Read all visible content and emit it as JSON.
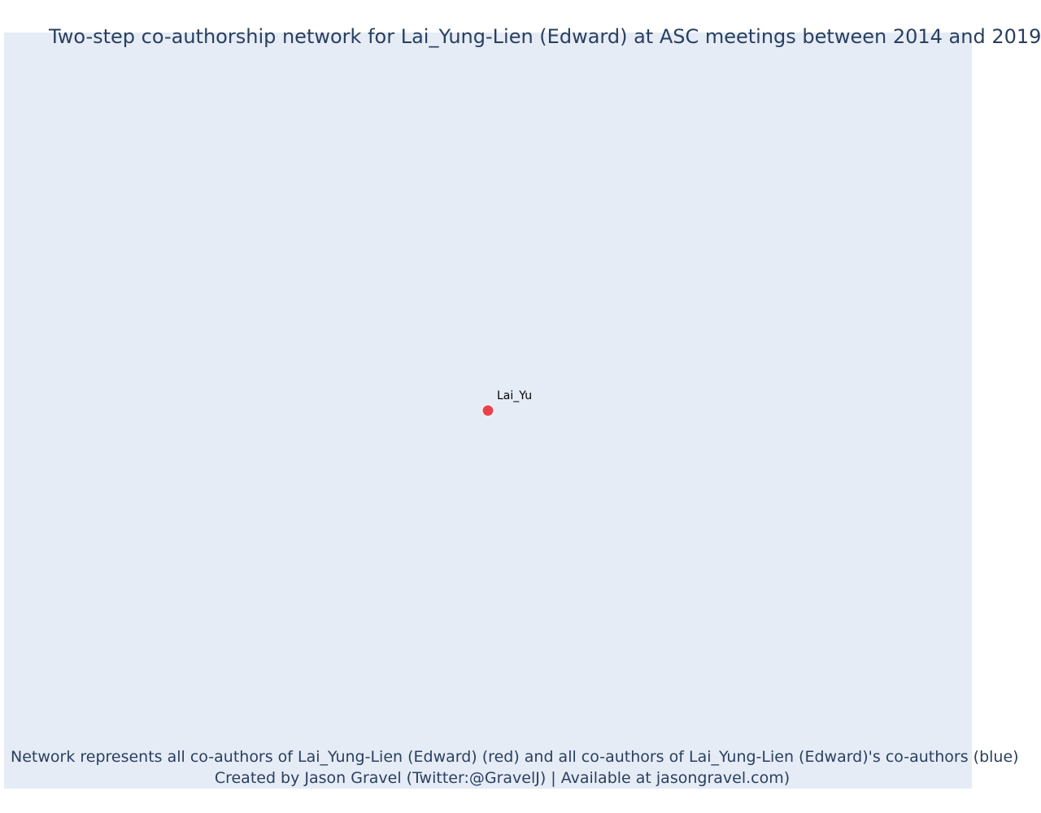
{
  "figure": {
    "title": "Two-step co-authorship network for Lai_Yung-Lien (Edward) at ASC meetings between 2014 and 2019",
    "caption_line1": "Network represents all co-authors of Lai_Yung-Lien (Edward) (red) and all co-authors of Lai_Yung-Lien (Edward)'s co-authors (blue)",
    "caption_line2": "Created by Jason Gravel (Twitter:@GravelJ) | Available at jasongravel.com)",
    "background_color": "#e5ecf6",
    "text_color": "#2a3f5f"
  },
  "network": {
    "nodes": [
      {
        "id": "Lai_Yu",
        "label": "Lai_Yu",
        "role": "focal",
        "color": "#e8434b"
      }
    ],
    "edges": []
  }
}
